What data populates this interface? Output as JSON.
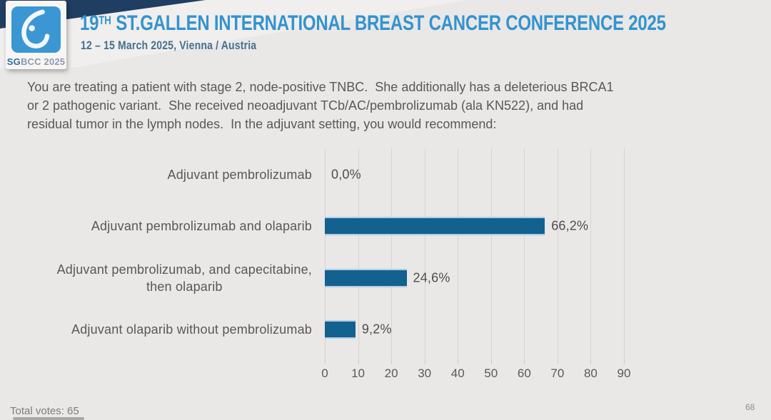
{
  "header": {
    "title_num": "19",
    "title_sup": "TH",
    "title_rest": " ST.GALLEN INTERNATIONAL BREAST CANCER CONFERENCE 2025",
    "subtitle": "12 – 15 March 2025, Vienna / Austria",
    "logo": {
      "icon": "breast-icon",
      "sg": "SG",
      "rest": "BCC 2025"
    }
  },
  "question": {
    "lines": [
      "You are treating a patient with stage 2, node-positive TNBC.  She additionally has a deleterious BRCA1",
      "or 2 pathogenic variant.  She received neoadjuvant TCb/AC/pembrolizumab (ala KN522), and had",
      "residual tumor in the lymph nodes.  In the adjuvant setting, you would recommend:"
    ]
  },
  "chart_data": {
    "type": "bar",
    "orientation": "horizontal",
    "title": "",
    "xlabel": "",
    "ylabel": "",
    "categories": [
      "Adjuvant pembrolizumab",
      "Adjuvant pembrolizumab and olaparib",
      "Adjuvant pembrolizumab, and capecitabine, then olaparib",
      "Adjuvant olaparib without pembrolizumab"
    ],
    "category_lines": [
      [
        "Adjuvant pembrolizumab"
      ],
      [
        "Adjuvant pembrolizumab and olaparib"
      ],
      [
        "Adjuvant pembrolizumab, and capecitabine,",
        "then olaparib"
      ],
      [
        "Adjuvant olaparib without pembrolizumab"
      ]
    ],
    "values": [
      0.0,
      66.2,
      24.6,
      9.2
    ],
    "value_labels": [
      "0,0%",
      "66,2%",
      "24,6%",
      "9,2%"
    ],
    "x_ticks": [
      0,
      10,
      20,
      30,
      40,
      50,
      60,
      70,
      80,
      90
    ],
    "xlim": [
      0,
      90
    ],
    "grid": true,
    "legend": false,
    "bar_color": "#12618f"
  },
  "footer": {
    "total_votes": "Total votes: 65",
    "page_number": "68"
  },
  "colors": {
    "background": "#e9e8e7",
    "ribbon_navy": "#203d62",
    "title_blue": "#3393cf",
    "subtitle_blue": "#46718e",
    "logo_blue": "#3b97d3",
    "bar_blue": "#12618f",
    "gridline": "#d5d4d3",
    "text_gray": "#595757"
  }
}
